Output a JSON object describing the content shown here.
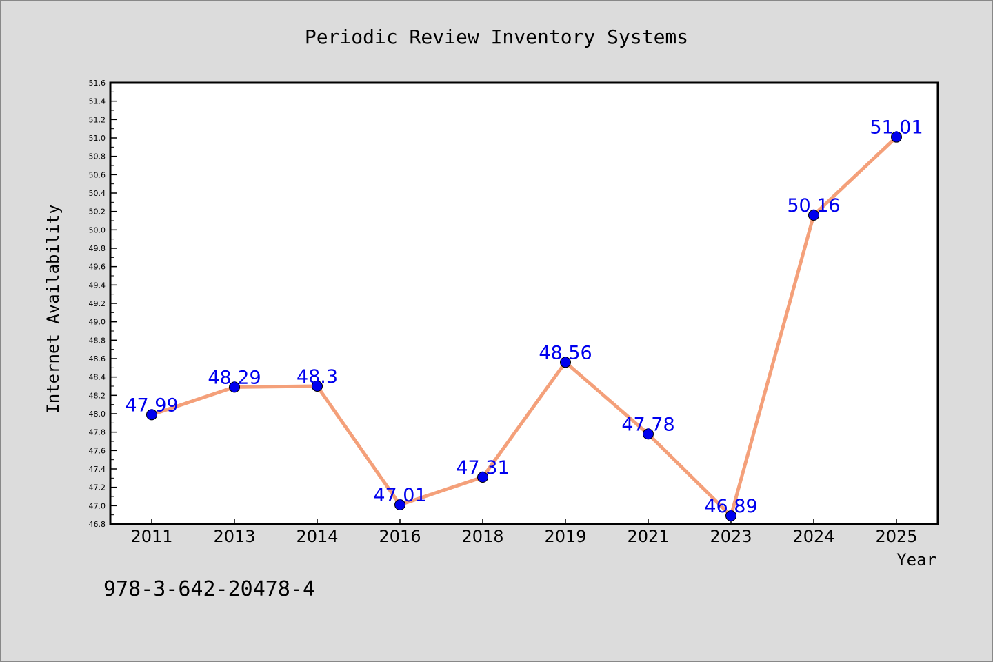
{
  "chart_data": {
    "type": "line",
    "title": "Periodic Review Inventory Systems",
    "xlabel": "Year",
    "ylabel": "Internet Availability",
    "categories": [
      "2011",
      "2013",
      "2014",
      "2016",
      "2018",
      "2019",
      "2021",
      "2023",
      "2024",
      "2025"
    ],
    "values": [
      47.99,
      48.29,
      48.3,
      47.01,
      47.31,
      48.56,
      47.78,
      46.89,
      50.16,
      51.01
    ],
    "data_labels": [
      "47.99",
      "48.29",
      "48.3",
      "47.01",
      "47.31",
      "48.56",
      "47.78",
      "46.89",
      "50.16",
      "51.01"
    ],
    "ylim": [
      46.8,
      51.6
    ],
    "y_ticks": [
      "46.8",
      "47.0",
      "47.2",
      "47.4",
      "47.6",
      "47.8",
      "48.0",
      "48.2",
      "48.4",
      "48.6",
      "48.8",
      "49.0",
      "49.2",
      "49.4",
      "49.6",
      "49.8",
      "50.0",
      "50.2",
      "50.4",
      "50.6",
      "50.8",
      "51.0",
      "51.2",
      "51.4",
      "51.6"
    ],
    "grid": false,
    "line_color": "#f4a07a",
    "marker_color": "#0000ee",
    "label_color": "#0000ee"
  },
  "annotation": "978-3-642-20478-4"
}
